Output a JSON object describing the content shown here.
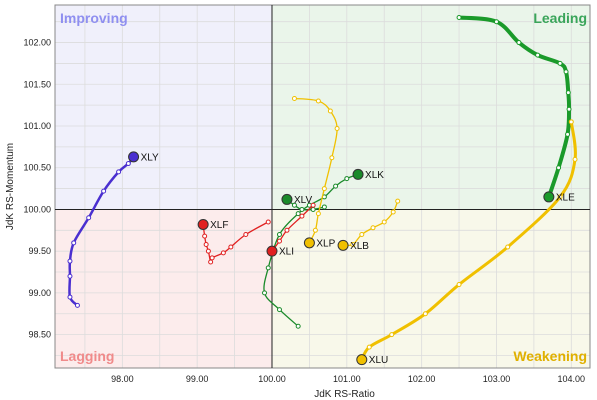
{
  "chart_data": {
    "type": "scatter",
    "subtype": "relative-rotation-graph",
    "title": "",
    "xlabel": "JdK RS-Ratio",
    "ylabel": "JdK RS-Momentum",
    "xlim": [
      97.1,
      104.25
    ],
    "ylim": [
      98.1,
      102.45
    ],
    "xticks": [
      98.0,
      99.0,
      100.0,
      101.0,
      102.0,
      103.0,
      104.0
    ],
    "xtick_labels": [
      "98.00",
      "99.00",
      "100.00",
      "101.00",
      "102.00",
      "103.00",
      "104.00"
    ],
    "yticks": [
      98.5,
      99.0,
      99.5,
      100.0,
      100.5,
      101.0,
      101.5,
      102.0
    ],
    "ytick_labels": [
      "98.50",
      "99.00",
      "99.50",
      "100.00",
      "100.50",
      "101.00",
      "101.50",
      "102.00"
    ],
    "grid": true,
    "center": [
      100.0,
      100.0
    ],
    "quadrants": [
      {
        "name": "Improving",
        "position": "top-left",
        "color": "#8f8ff0",
        "fill": "#f0f0fb"
      },
      {
        "name": "Leading",
        "position": "top-right",
        "color": "#3aa55a",
        "fill": "#eaf5ea"
      },
      {
        "name": "Lagging",
        "position": "bottom-left",
        "color": "#f08a8a",
        "fill": "#fcecec"
      },
      {
        "name": "Weakening",
        "position": "bottom-right",
        "color": "#e0b000",
        "fill": "#f8f8ea"
      }
    ],
    "series": [
      {
        "name": "XLY",
        "color": "#4a2fd0",
        "width": 2.5,
        "points": [
          [
            97.4,
            98.85
          ],
          [
            97.3,
            98.95
          ],
          [
            97.3,
            99.2
          ],
          [
            97.3,
            99.38
          ],
          [
            97.35,
            99.6
          ],
          [
            97.55,
            99.9
          ],
          [
            97.75,
            100.22
          ],
          [
            97.95,
            100.45
          ],
          [
            98.08,
            100.55
          ],
          [
            98.15,
            100.63
          ]
        ]
      },
      {
        "name": "XLE",
        "color": "#1a9a2a",
        "width": 4,
        "points": [
          [
            102.5,
            102.3
          ],
          [
            103.0,
            102.25
          ],
          [
            103.3,
            102.0
          ],
          [
            103.55,
            101.85
          ],
          [
            103.85,
            101.75
          ],
          [
            103.93,
            101.65
          ],
          [
            103.96,
            101.4
          ],
          [
            103.97,
            101.2
          ],
          [
            103.95,
            100.9
          ],
          [
            103.83,
            100.5
          ],
          [
            103.7,
            100.15
          ]
        ]
      },
      {
        "name": "XLU",
        "color": "#f0c000",
        "width": 3,
        "points": [
          [
            104.0,
            101.05
          ],
          [
            104.05,
            100.6
          ],
          [
            103.85,
            100.15
          ],
          [
            103.15,
            99.55
          ],
          [
            102.5,
            99.1
          ],
          [
            102.05,
            98.75
          ],
          [
            101.6,
            98.5
          ],
          [
            101.3,
            98.35
          ],
          [
            101.2,
            98.2
          ]
        ]
      },
      {
        "name": "XLK",
        "color": "#1a8a2a",
        "width": 1.3,
        "points": [
          [
            100.35,
            98.6
          ],
          [
            100.1,
            98.8
          ],
          [
            99.9,
            99.0
          ],
          [
            99.95,
            99.3
          ],
          [
            100.1,
            99.7
          ],
          [
            100.35,
            99.95
          ],
          [
            100.5,
            100.05
          ],
          [
            100.7,
            100.15
          ],
          [
            100.85,
            100.28
          ],
          [
            101.0,
            100.37
          ],
          [
            101.15,
            100.42
          ]
        ]
      },
      {
        "name": "XLV",
        "color": "#1a8a2a",
        "width": 1.3,
        "points": [
          [
            100.7,
            100.03
          ],
          [
            100.55,
            100.0
          ],
          [
            100.4,
            100.0
          ],
          [
            100.3,
            100.05
          ],
          [
            100.2,
            100.12
          ]
        ]
      },
      {
        "name": "XLP",
        "color": "#f0c000",
        "width": 1.3,
        "points": [
          [
            100.3,
            101.33
          ],
          [
            100.62,
            101.3
          ],
          [
            100.78,
            101.18
          ],
          [
            100.87,
            100.97
          ],
          [
            100.8,
            100.62
          ],
          [
            100.7,
            100.25
          ],
          [
            100.62,
            99.95
          ],
          [
            100.58,
            99.75
          ],
          [
            100.5,
            99.6
          ]
        ]
      },
      {
        "name": "XLB",
        "color": "#f0c000",
        "width": 1.3,
        "points": [
          [
            101.68,
            100.1
          ],
          [
            101.62,
            99.97
          ],
          [
            101.5,
            99.85
          ],
          [
            101.35,
            99.78
          ],
          [
            101.2,
            99.7
          ],
          [
            101.08,
            99.58
          ],
          [
            100.95,
            99.57
          ]
        ]
      },
      {
        "name": "XLF",
        "color": "#e02020",
        "width": 1.3,
        "points": [
          [
            99.95,
            99.85
          ],
          [
            99.65,
            99.7
          ],
          [
            99.45,
            99.55
          ],
          [
            99.35,
            99.48
          ],
          [
            99.2,
            99.42
          ],
          [
            99.18,
            99.37
          ],
          [
            99.15,
            99.5
          ],
          [
            99.12,
            99.58
          ],
          [
            99.1,
            99.68
          ],
          [
            99.08,
            99.82
          ]
        ]
      },
      {
        "name": "XLI",
        "color": "#e02020",
        "width": 1.3,
        "points": [
          [
            100.55,
            100.05
          ],
          [
            100.4,
            99.92
          ],
          [
            100.2,
            99.75
          ],
          [
            100.1,
            99.62
          ],
          [
            100.0,
            99.5
          ]
        ]
      }
    ]
  }
}
